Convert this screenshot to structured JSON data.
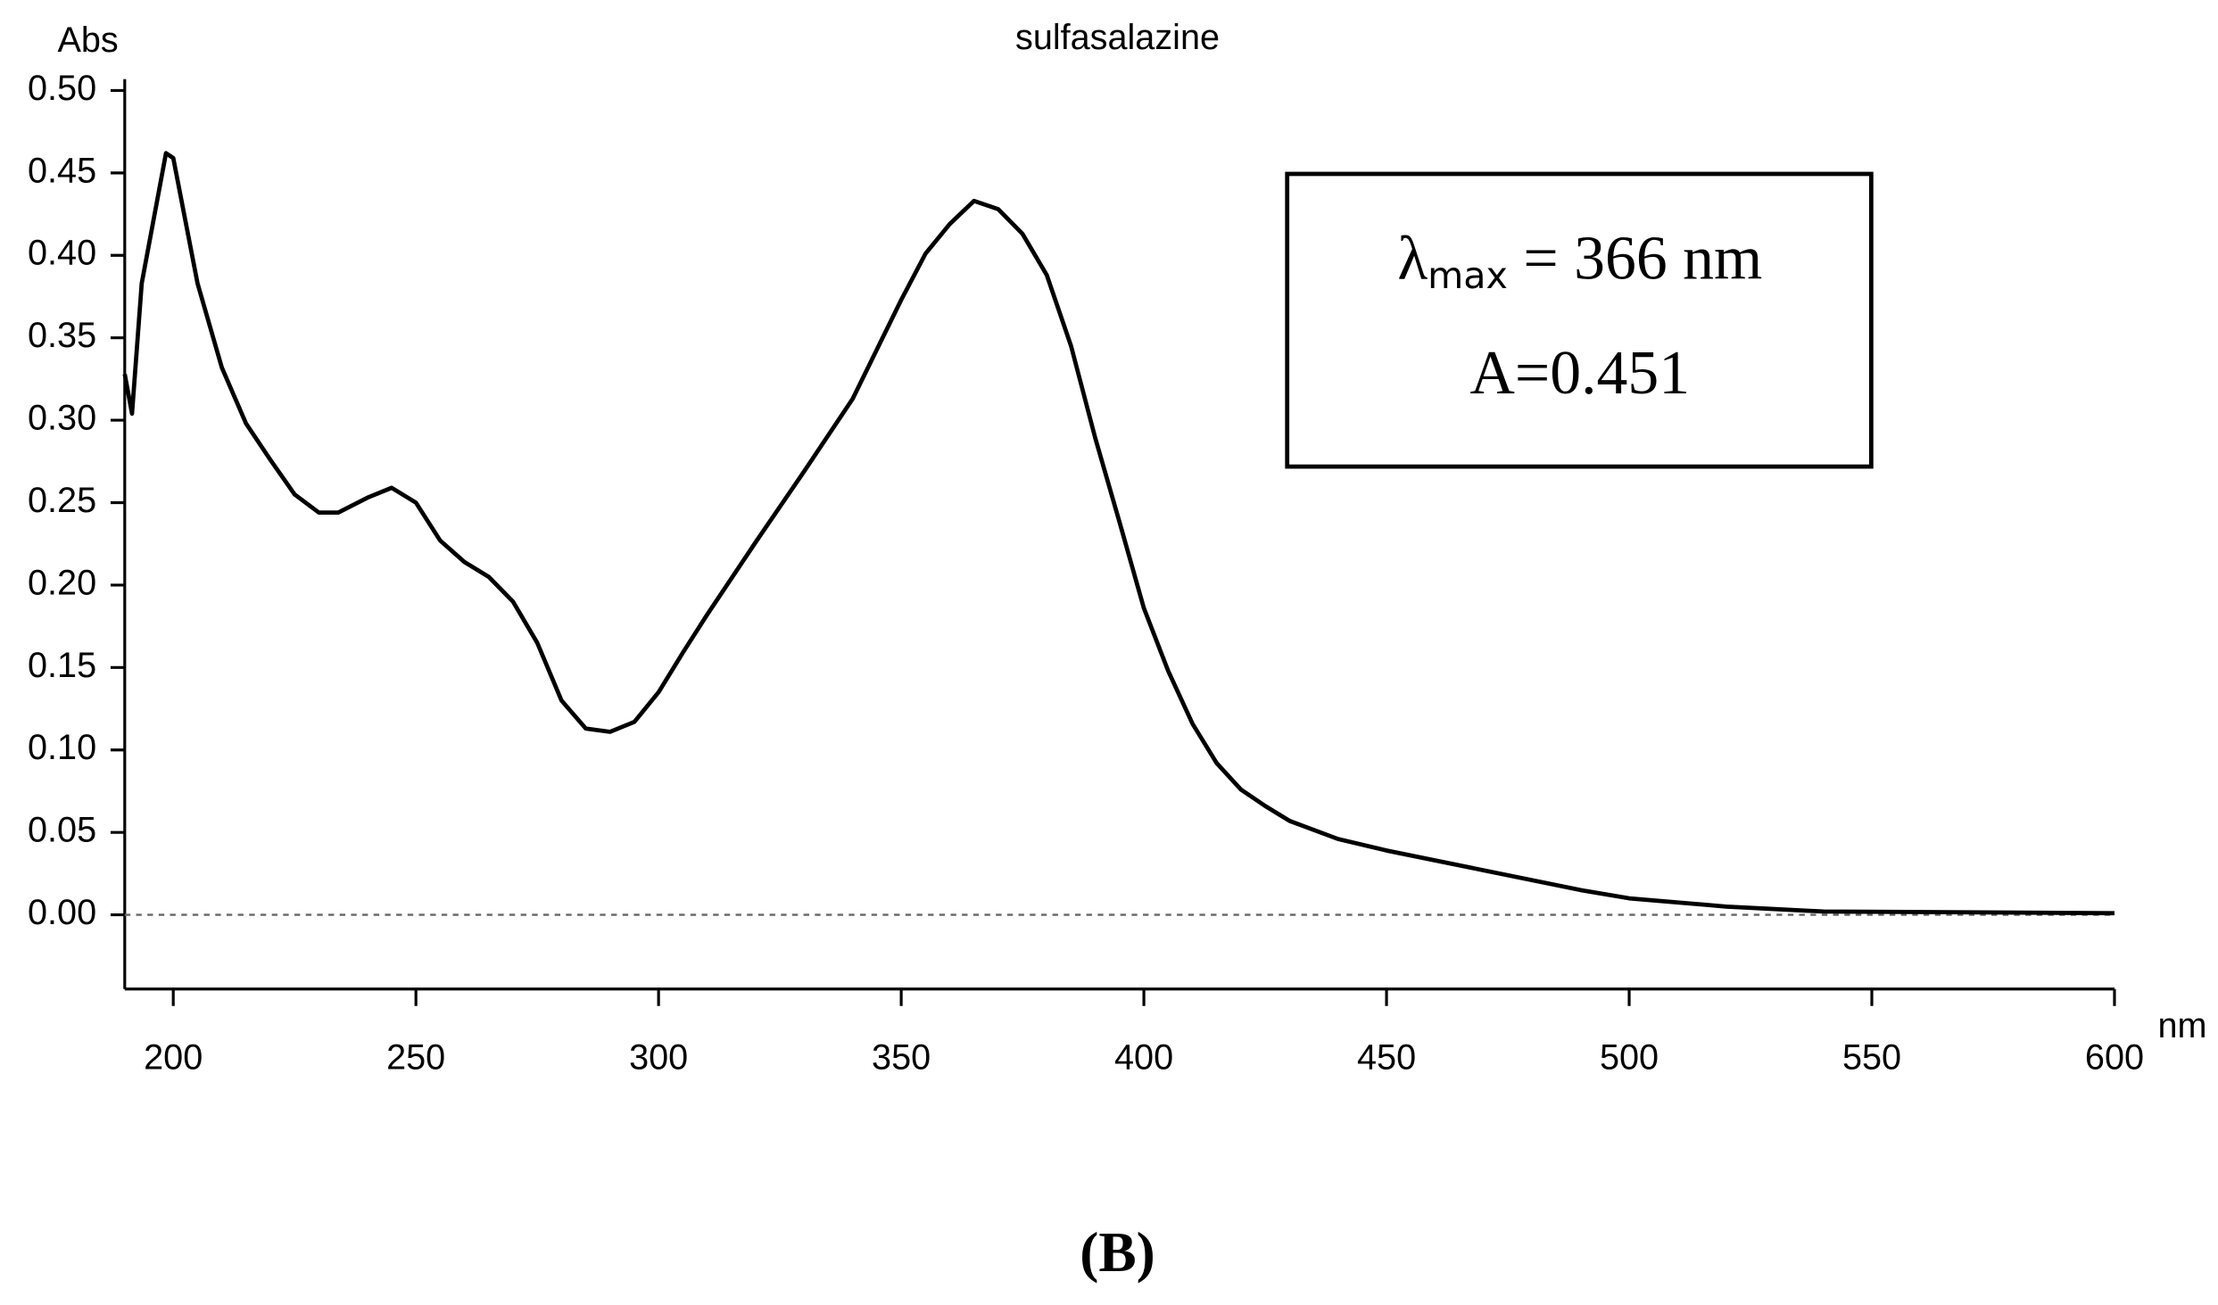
{
  "chart_data": {
    "type": "line",
    "title": "sulfasalazine",
    "y_label": "Abs",
    "x_label": "nm",
    "annotation": {
      "symbol": "λ",
      "subscript": "max",
      "text": " = 366 nm",
      "value_text": "A=0.451"
    },
    "caption": "(B)",
    "xlim": [
      190,
      600
    ],
    "xticks": [
      200,
      250,
      300,
      350,
      400,
      450,
      500,
      550,
      600
    ],
    "ylim": [
      -0.045,
      0.5
    ],
    "yticks": [
      {
        "value": 0,
        "label": "0.00"
      },
      {
        "value": 0.05,
        "label": "0.05"
      },
      {
        "value": 0.1,
        "label": "0.10"
      },
      {
        "value": 0.15,
        "label": "0.15"
      },
      {
        "value": 0.2,
        "label": "0.20"
      },
      {
        "value": 0.25,
        "label": "0.25"
      },
      {
        "value": 0.3,
        "label": "0.30"
      },
      {
        "value": 0.35,
        "label": "0.35"
      },
      {
        "value": 0.4,
        "label": "0.40"
      },
      {
        "value": 0.45,
        "label": "0.45"
      },
      {
        "value": 0.5,
        "label": "0.50"
      }
    ],
    "zero_line": true,
    "series": [
      {
        "color": "#000000",
        "x": [
          190,
          191.5,
          193.5,
          198.5,
          200,
          205,
          210,
          215,
          220,
          225,
          230,
          234,
          240,
          245,
          250,
          255,
          260,
          265,
          270,
          275,
          280,
          285,
          290,
          295,
          300,
          305,
          310,
          320,
          330,
          340,
          350,
          355,
          360,
          365,
          370,
          375,
          380,
          385,
          390,
          395,
          400,
          405,
          410,
          415,
          420,
          425,
          430,
          440,
          450,
          470,
          490,
          500,
          520,
          540,
          600
        ],
        "values": [
          0.328,
          0.304,
          0.383,
          0.462,
          0.459,
          0.383,
          0.332,
          0.298,
          0.276,
          0.255,
          0.244,
          0.244,
          0.253,
          0.259,
          0.25,
          0.227,
          0.214,
          0.205,
          0.19,
          0.165,
          0.13,
          0.113,
          0.111,
          0.117,
          0.135,
          0.159,
          0.182,
          0.226,
          0.269,
          0.313,
          0.373,
          0.401,
          0.419,
          0.433,
          0.428,
          0.413,
          0.388,
          0.345,
          0.289,
          0.238,
          0.186,
          0.148,
          0.116,
          0.092,
          0.076,
          0.066,
          0.057,
          0.046,
          0.039,
          0.027,
          0.015,
          0.01,
          0.005,
          0.002,
          0.001
        ]
      }
    ]
  }
}
